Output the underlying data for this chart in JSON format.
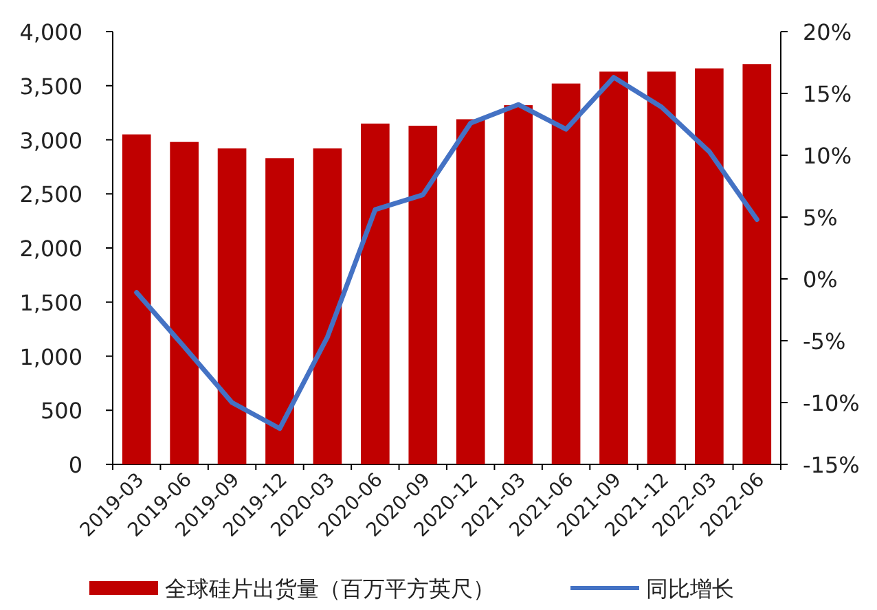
{
  "chart_data": {
    "type": "bar",
    "categories": [
      "2019-03",
      "2019-06",
      "2019-09",
      "2019-12",
      "2020-03",
      "2020-06",
      "2020-09",
      "2020-12",
      "2021-03",
      "2021-06",
      "2021-09",
      "2021-12",
      "2022-03",
      "2022-06"
    ],
    "series": [
      {
        "name": "全球硅片出货量（百万平方英尺）",
        "color": "#c00000",
        "values": [
          3050,
          2980,
          2920,
          2830,
          2920,
          3150,
          3130,
          3190,
          3320,
          3520,
          3630,
          3630,
          3660,
          3700
        ]
      },
      {
        "name": "同比增长",
        "color": "#4472c4",
        "type": "line",
        "axis": "y2",
        "values": [
          -1.1,
          -5.5,
          -10,
          -12.1,
          -4.7,
          5.6,
          6.8,
          12.6,
          14.1,
          12.1,
          16.3,
          13.9,
          10.3,
          4.8
        ]
      }
    ],
    "ylim": [
      0,
      4000
    ],
    "yticks": [
      0,
      500,
      {
        "value": 1000,
        "label": "1,000"
      },
      {
        "value": 1500,
        "label": "1,500"
      },
      {
        "value": 2000,
        "label": "2,000"
      },
      {
        "value": 2500,
        "label": "2,500"
      },
      {
        "value": 3000,
        "label": "3,000"
      },
      {
        "value": 3500,
        "label": "3,500"
      },
      {
        "value": 4000,
        "label": "4,000"
      }
    ],
    "y2lim": [
      -15,
      20
    ],
    "y2ticks": [
      {
        "value": -15,
        "label": "-15%"
      },
      {
        "value": -10,
        "label": "-10%"
      },
      {
        "value": -5,
        "label": "-5%"
      },
      {
        "value": 0,
        "label": "0%"
      },
      {
        "value": 5,
        "label": "5%"
      },
      {
        "value": 10,
        "label": "10%"
      },
      {
        "value": 15,
        "label": "15%"
      },
      {
        "value": 20,
        "label": "20%"
      }
    ],
    "legend": "bottom"
  }
}
